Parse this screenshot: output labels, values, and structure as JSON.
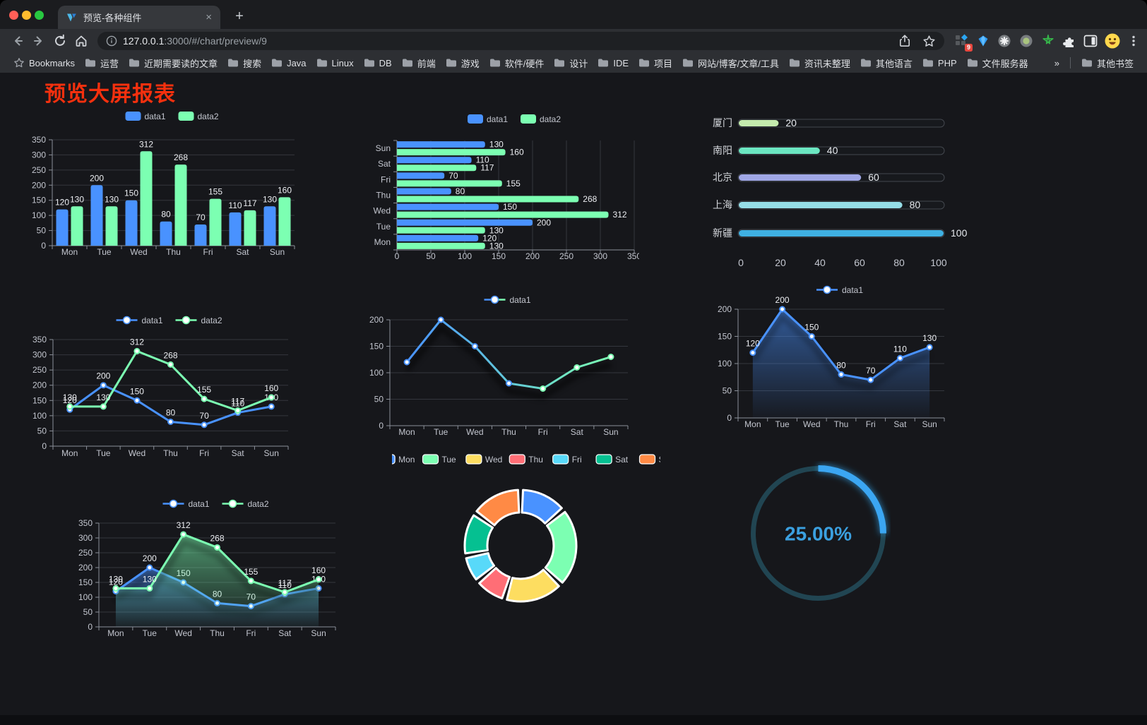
{
  "browser": {
    "tab_title": "预览-各种组件",
    "tab_close": "×",
    "new_tab": "+",
    "url": {
      "host": "127.0.0.1",
      "rest": ":3000/#/chart/preview/9"
    },
    "extension_badge": "9",
    "bookmarks_root": "Bookmarks",
    "bookmarks": [
      "运营",
      "近期需要读的文章",
      "搜索",
      "Java",
      "Linux",
      "DB",
      "前端",
      "游戏",
      "软件/硬件",
      "设计",
      "IDE",
      "项目",
      "网站/博客/文章/工具",
      "资讯未整理",
      "其他语言",
      "PHP",
      "文件服务器"
    ],
    "bookmarks_overflow": "»",
    "other_bookmarks": "其他书签"
  },
  "page": {
    "title": "预览大屏报表"
  },
  "chart_data": [
    {
      "id": "bar-vertical",
      "type": "bar",
      "categories": [
        "Mon",
        "Tue",
        "Wed",
        "Thu",
        "Fri",
        "Sat",
        "Sun"
      ],
      "series": [
        {
          "name": "data1",
          "color": "#4992ff",
          "values": [
            120,
            200,
            150,
            80,
            70,
            110,
            130
          ]
        },
        {
          "name": "data2",
          "color": "#7cffb2",
          "values": [
            130,
            130,
            312,
            268,
            155,
            117,
            160
          ]
        }
      ],
      "ylim": [
        0,
        350
      ],
      "ystep": 50,
      "legend_position": "top",
      "grid": true,
      "value_labels": true
    },
    {
      "id": "bar-horizontal",
      "type": "bar",
      "orientation": "horizontal",
      "categories": [
        "Mon",
        "Tue",
        "Wed",
        "Thu",
        "Fri",
        "Sat",
        "Sun"
      ],
      "series": [
        {
          "name": "data1",
          "color": "#4992ff",
          "values": [
            120,
            200,
            150,
            80,
            70,
            110,
            130
          ]
        },
        {
          "name": "data2",
          "color": "#7cffb2",
          "values": [
            130,
            130,
            312,
            268,
            155,
            117,
            160
          ]
        }
      ],
      "xlim": [
        0,
        350
      ],
      "xstep": 50,
      "legend_position": "top",
      "grid": true,
      "value_labels": true
    },
    {
      "id": "progress-bars",
      "type": "bar",
      "orientation": "horizontal-progress",
      "categories": [
        "厦门",
        "南阳",
        "北京",
        "上海",
        "新疆"
      ],
      "values": [
        20,
        40,
        60,
        80,
        100
      ],
      "colors": [
        "#c4ebad",
        "#6be6c1",
        "#a0a7e6",
        "#96dee8",
        "#3fb1e3"
      ],
      "xlim": [
        0,
        100
      ],
      "xticks": [
        0,
        20,
        40,
        60,
        80,
        100
      ],
      "value_labels": true
    },
    {
      "id": "line-two-series",
      "type": "line",
      "categories": [
        "Mon",
        "Tue",
        "Wed",
        "Thu",
        "Fri",
        "Sat",
        "Sun"
      ],
      "series": [
        {
          "name": "data1",
          "color": "#4992ff",
          "values": [
            120,
            200,
            150,
            80,
            70,
            110,
            130
          ]
        },
        {
          "name": "data2",
          "color": "#7cffb2",
          "values": [
            130,
            130,
            312,
            268,
            155,
            117,
            160
          ]
        }
      ],
      "ylim": [
        0,
        350
      ],
      "ystep": 50,
      "legend_position": "top",
      "value_labels": true
    },
    {
      "id": "line-gradient",
      "type": "line",
      "categories": [
        "Mon",
        "Tue",
        "Wed",
        "Thu",
        "Fri",
        "Sat",
        "Sun"
      ],
      "series": [
        {
          "name": "data1",
          "color": "#4992ff",
          "color_end": "#7cffb2",
          "values": [
            120,
            200,
            150,
            80,
            70,
            110,
            130
          ]
        }
      ],
      "ylim": [
        0,
        200
      ],
      "ystep": 50,
      "legend_position": "top",
      "value_labels": false
    },
    {
      "id": "area-single",
      "type": "area",
      "categories": [
        "Mon",
        "Tue",
        "Wed",
        "Thu",
        "Fri",
        "Sat",
        "Sun"
      ],
      "series": [
        {
          "name": "data1",
          "color": "#4992ff",
          "values": [
            120,
            200,
            150,
            80,
            70,
            110,
            130
          ]
        }
      ],
      "ylim": [
        0,
        200
      ],
      "ystep": 50,
      "legend_position": "top",
      "value_labels": true
    },
    {
      "id": "area-two-series",
      "type": "area",
      "categories": [
        "Mon",
        "Tue",
        "Wed",
        "Thu",
        "Fri",
        "Sat",
        "Sun"
      ],
      "series": [
        {
          "name": "data1",
          "color": "#4992ff",
          "values": [
            120,
            200,
            150,
            80,
            70,
            110,
            130
          ]
        },
        {
          "name": "data2",
          "color": "#7cffb2",
          "values": [
            130,
            130,
            312,
            268,
            155,
            117,
            160
          ]
        }
      ],
      "ylim": [
        0,
        350
      ],
      "ystep": 50,
      "legend_position": "top",
      "value_labels": true
    },
    {
      "id": "doughnut",
      "type": "pie",
      "categories": [
        "Mon",
        "Tue",
        "Wed",
        "Thu",
        "Fri",
        "Sat",
        "Sun"
      ],
      "values": [
        120,
        200,
        150,
        80,
        70,
        110,
        130
      ],
      "colors": [
        "#4992ff",
        "#7cffb2",
        "#fddd60",
        "#ff6e76",
        "#58d9f9",
        "#05c091",
        "#ff8a45"
      ],
      "legend_position": "top",
      "inner_radius_ratio": 0.59,
      "border_color": "#ffffff"
    },
    {
      "id": "gauge",
      "type": "gauge",
      "value": 25,
      "max": 100,
      "label": "25.00%",
      "color": "#3ba6f2",
      "track_color": "#214552",
      "text_color": "#3ba0e0"
    }
  ]
}
